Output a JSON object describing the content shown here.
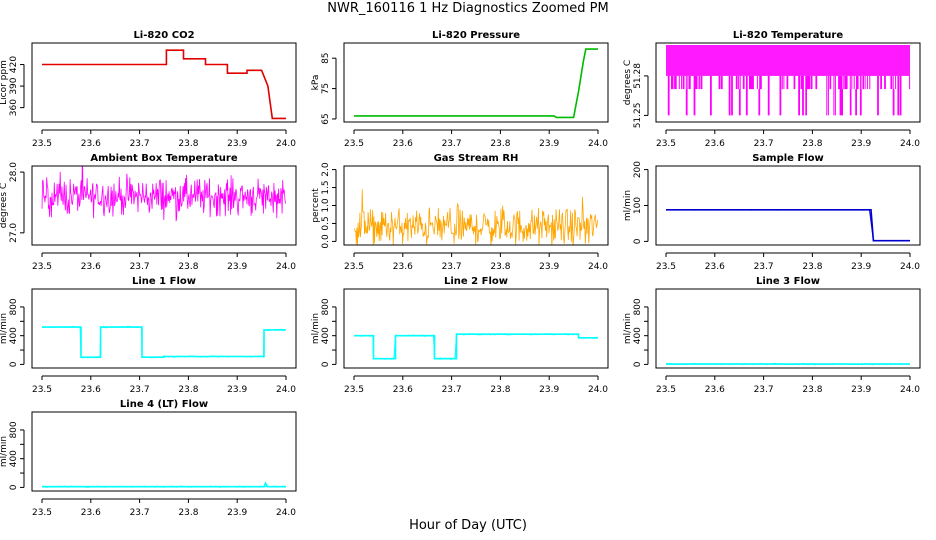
{
  "title": "NWR_160116  1 Hz Diagnostics Zoomed PM",
  "xlabel": "Hour of Day (UTC)",
  "x_ticks": [
    "23.5",
    "23.6",
    "23.7",
    "23.8",
    "23.9",
    "24.0"
  ],
  "chart_data": [
    {
      "type": "line",
      "title": "Li-820 CO2",
      "ylabel": "Licor ppm",
      "color": "#e00000",
      "xlim": [
        23.5,
        24.0
      ],
      "ylim": [
        340,
        450
      ],
      "yticks": [
        360,
        390,
        420
      ],
      "ytick_labels": [
        "360",
        "390",
        "420"
      ],
      "x": [
        23.5,
        23.755,
        23.755,
        23.79,
        23.79,
        23.835,
        23.835,
        23.88,
        23.88,
        23.92,
        23.92,
        23.95,
        23.963,
        23.972,
        24.0
      ],
      "y": [
        420,
        420,
        440,
        440,
        428,
        428,
        420,
        420,
        408,
        408,
        412,
        412,
        390,
        345,
        345
      ]
    },
    {
      "type": "line",
      "title": "Li-820 Pressure",
      "ylabel": "kPa",
      "color": "#00bb00",
      "xlim": [
        23.5,
        24.0
      ],
      "ylim": [
        64,
        90
      ],
      "yticks": [
        65,
        75,
        85
      ],
      "ytick_labels": [
        "65",
        "75",
        "85"
      ],
      "x": [
        23.5,
        23.91,
        23.915,
        23.95,
        23.96,
        23.97,
        23.975,
        24.0
      ],
      "y": [
        66,
        66,
        65.5,
        65.5,
        74,
        84,
        88,
        88
      ]
    },
    {
      "type": "line",
      "title": "Li-820 Temperature",
      "ylabel": "degrees C",
      "color": "#ff00ff",
      "xlim": [
        23.5,
        24.0
      ],
      "ylim": [
        51.245,
        51.305
      ],
      "yticks": [
        51.25,
        51.28
      ],
      "ytick_labels": [
        "51.25",
        "51.28"
      ],
      "levels": [
        51.25,
        51.27,
        51.28
      ]
    },
    {
      "type": "line",
      "title": "Ambient Box Temperature",
      "ylabel": "degrees C",
      "color": "#ff00ff",
      "xlim": [
        23.5,
        24.0
      ],
      "ylim": [
        26.8,
        28.1
      ],
      "yticks": [
        27.0,
        28.0
      ],
      "ytick_labels": [
        "27.0",
        "28.0"
      ],
      "mean": 27.6,
      "spread": 0.15
    },
    {
      "type": "line",
      "title": "Gas Stream RH",
      "ylabel": "percent",
      "color": "#ffa500",
      "xlim": [
        23.5,
        24.0
      ],
      "ylim": [
        -0.1,
        2.1
      ],
      "yticks": [
        0.0,
        0.5,
        1.0,
        1.5,
        2.0
      ],
      "ytick_labels": [
        "0.0",
        "0.5",
        "1.0",
        "1.5",
        "2.0"
      ],
      "mean": 0.4,
      "spread": 0.25
    },
    {
      "type": "line",
      "title": "Sample Flow",
      "ylabel": "ml/min",
      "color": "#0000cc",
      "xlim": [
        23.5,
        24.0
      ],
      "ylim": [
        -10,
        210
      ],
      "yticks": [
        0,
        100,
        200
      ],
      "ytick_labels": [
        "0",
        "100",
        "200"
      ],
      "x": [
        23.5,
        23.92,
        23.925,
        24.0
      ],
      "y": [
        88,
        88,
        2,
        2
      ]
    },
    {
      "type": "line",
      "title": "Line 1 Flow",
      "ylabel": "ml/min",
      "color": "#00ffff",
      "xlim": [
        23.5,
        24.0
      ],
      "ylim": [
        -50,
        1050
      ],
      "yticks": [
        0,
        200,
        400,
        600,
        800
      ],
      "ytick_labels": [
        "0",
        "400",
        "800"
      ],
      "x": [
        23.5,
        23.58,
        23.58,
        23.62,
        23.62,
        23.705,
        23.705,
        23.75,
        23.75,
        23.955,
        23.955,
        24.0
      ],
      "y": [
        520,
        520,
        100,
        100,
        520,
        520,
        100,
        100,
        110,
        110,
        480,
        480
      ]
    },
    {
      "type": "line",
      "title": "Line 2 Flow",
      "ylabel": "ml/min",
      "color": "#00ffff",
      "xlim": [
        23.5,
        24.0
      ],
      "ylim": [
        -50,
        1050
      ],
      "yticks": [
        0,
        200,
        400,
        600,
        800
      ],
      "ytick_labels": [
        "0",
        "400",
        "800"
      ],
      "x": [
        23.5,
        23.54,
        23.54,
        23.585,
        23.585,
        23.665,
        23.665,
        23.71,
        23.71,
        23.96,
        23.96,
        24.0
      ],
      "y": [
        400,
        400,
        80,
        80,
        400,
        400,
        80,
        80,
        420,
        420,
        370,
        370
      ]
    },
    {
      "type": "line",
      "title": "Line 3 Flow",
      "ylabel": "ml/min",
      "color": "#00ffff",
      "xlim": [
        23.5,
        24.0
      ],
      "ylim": [
        -50,
        1050
      ],
      "yticks": [
        0,
        200,
        400,
        600,
        800
      ],
      "ytick_labels": [
        "0",
        "400",
        "800"
      ],
      "x": [
        23.5,
        24.0
      ],
      "y": [
        5,
        5
      ]
    },
    {
      "type": "line",
      "title": "Line 4 (LT) Flow",
      "ylabel": "ml/min",
      "color": "#00ffff",
      "xlim": [
        23.5,
        24.0
      ],
      "ylim": [
        -50,
        1050
      ],
      "yticks": [
        0,
        200,
        400,
        600,
        800
      ],
      "ytick_labels": [
        "0",
        "400",
        "800"
      ],
      "x": [
        23.5,
        23.955,
        23.958,
        23.962,
        23.965,
        24.0
      ],
      "y": [
        10,
        10,
        60,
        10,
        10,
        10
      ]
    }
  ]
}
